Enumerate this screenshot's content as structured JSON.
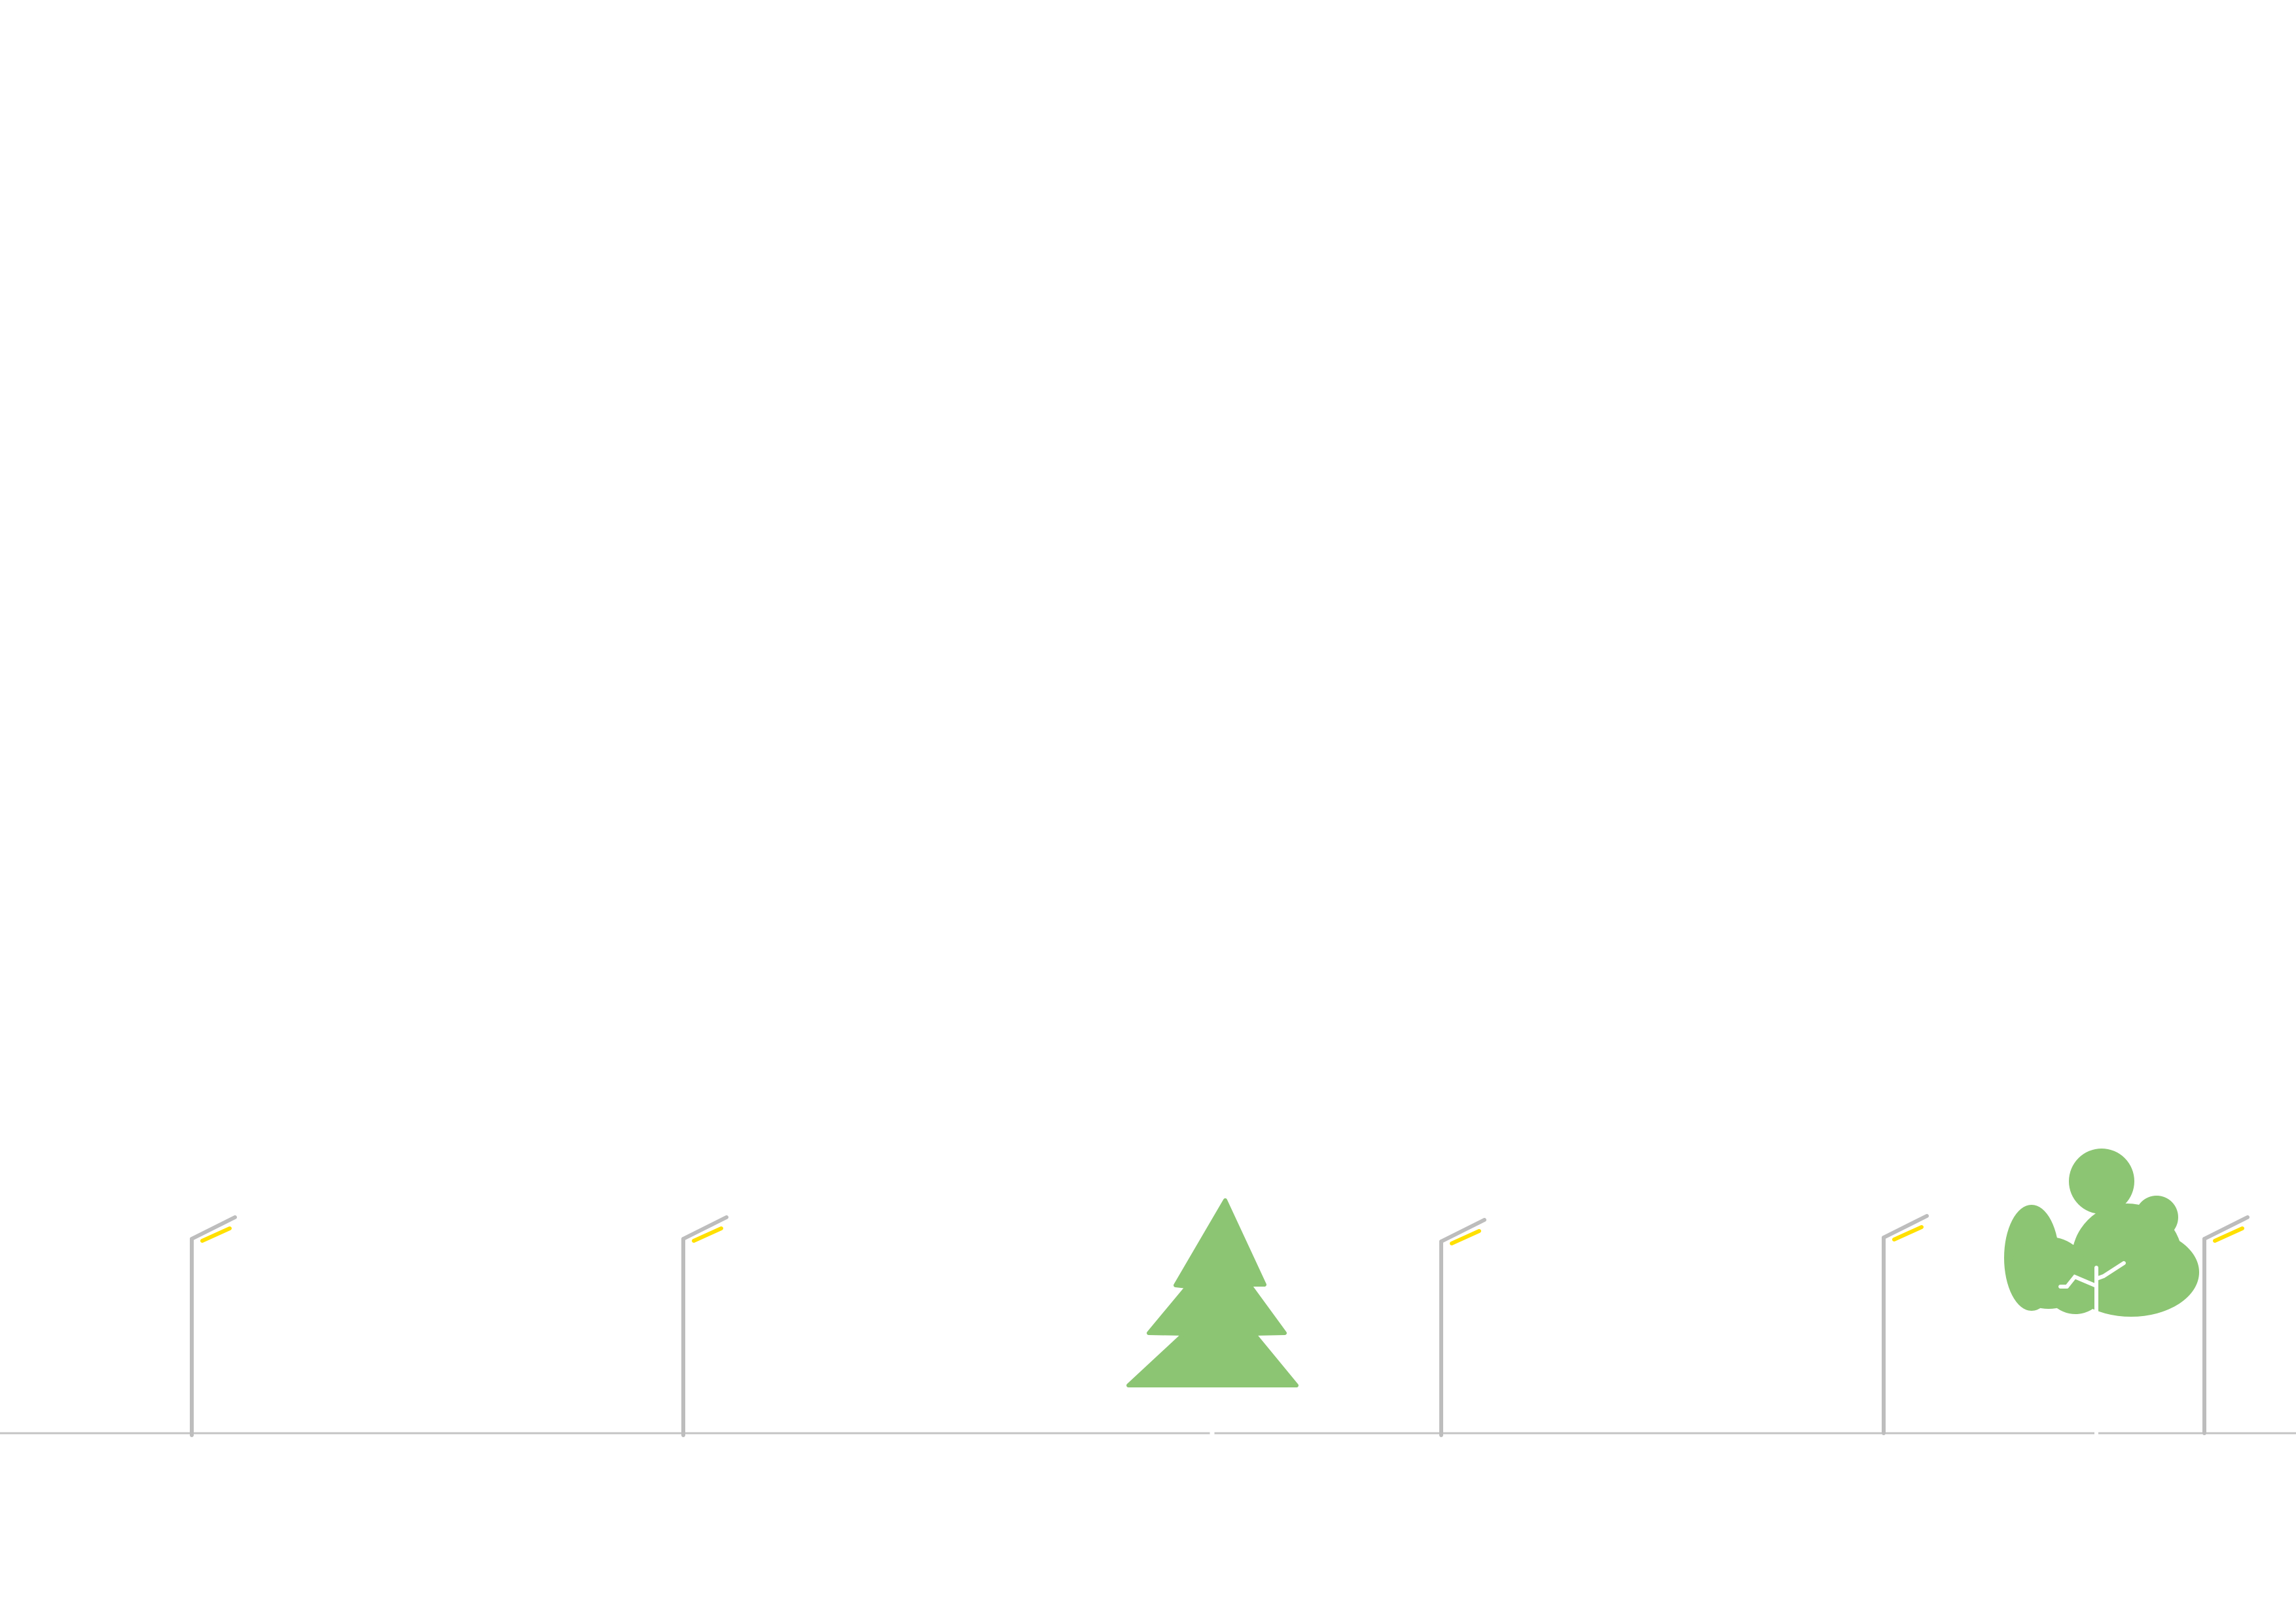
{
  "scene": {
    "background": "#ffffff",
    "ground_color": "#c4c4c4",
    "pole_color": "#bdbdbd",
    "lamp_color": "#ffe000",
    "foliage_color": "#8cc573",
    "trunk_color": "#ffffff",
    "objects": [
      {
        "kind": "street-lamp",
        "icon": "street-lamp-icon"
      },
      {
        "kind": "street-lamp",
        "icon": "street-lamp-icon"
      },
      {
        "kind": "conifer-tree",
        "icon": "conifer-tree-icon"
      },
      {
        "kind": "street-lamp",
        "icon": "street-lamp-icon"
      },
      {
        "kind": "street-lamp",
        "icon": "street-lamp-icon"
      },
      {
        "kind": "deciduous-tree",
        "icon": "deciduous-tree-icon"
      },
      {
        "kind": "street-lamp",
        "icon": "street-lamp-icon"
      }
    ]
  }
}
